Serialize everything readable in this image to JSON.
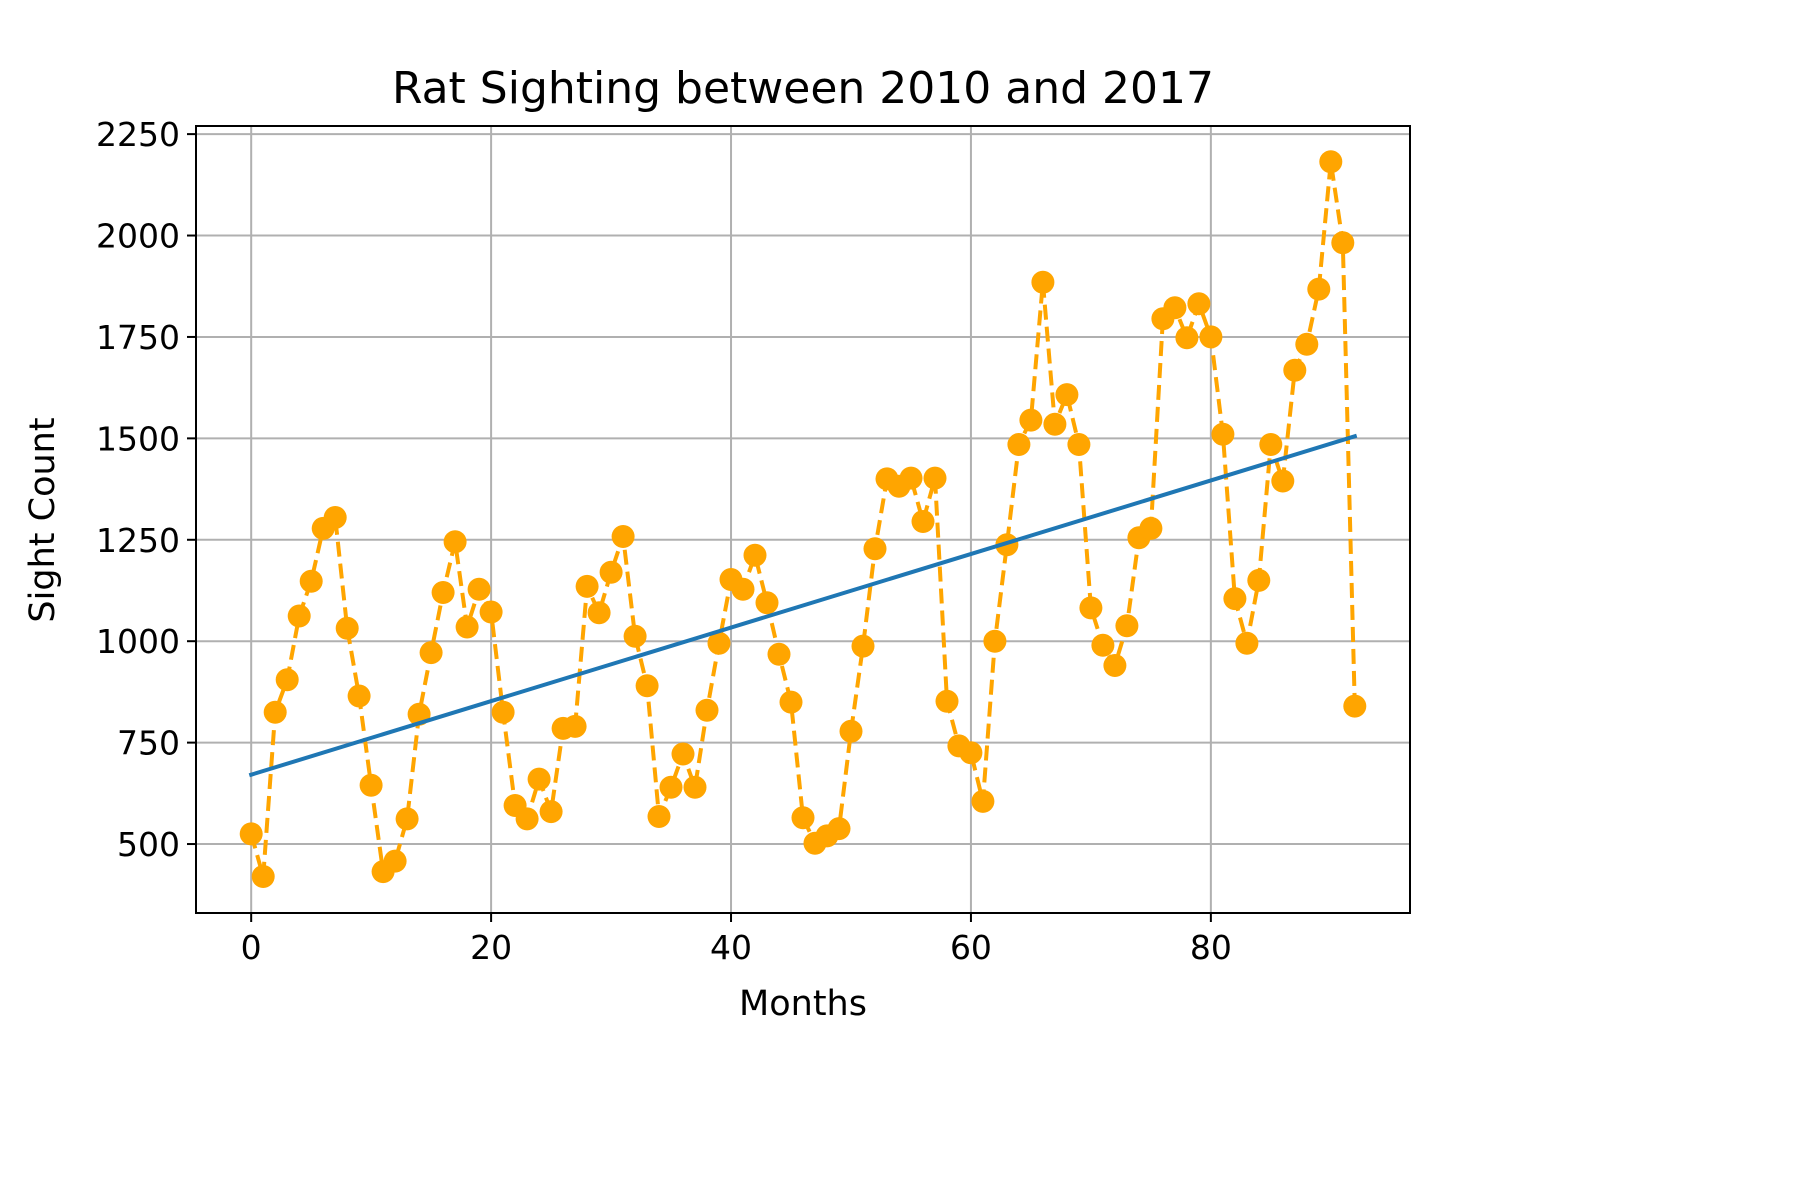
{
  "chart_data": {
    "type": "line",
    "title": "Rat Sighting between 2010 and 2017",
    "xlabel": "Months",
    "ylabel": "Sight Count",
    "xlim": [
      -4.6,
      96.6
    ],
    "ylim": [
      330,
      2270
    ],
    "x_ticks": [
      0,
      20,
      40,
      60,
      80
    ],
    "y_ticks": [
      500,
      750,
      1000,
      1250,
      1500,
      1750,
      2000,
      2250
    ],
    "grid": true,
    "legend": "none",
    "series": [
      {
        "style": "dashed line with circle markers",
        "color": "#ffa500",
        "x": [
          0,
          1,
          2,
          3,
          4,
          5,
          6,
          7,
          8,
          9,
          10,
          11,
          12,
          13,
          14,
          15,
          16,
          17,
          18,
          19,
          20,
          21,
          22,
          23,
          24,
          25,
          26,
          27,
          28,
          29,
          30,
          31,
          32,
          33,
          34,
          35,
          36,
          37,
          38,
          39,
          40,
          41,
          42,
          43,
          44,
          45,
          46,
          47,
          48,
          49,
          50,
          51,
          52,
          53,
          54,
          55,
          56,
          57,
          58,
          59,
          60,
          61,
          62,
          63,
          64,
          65,
          66,
          67,
          68,
          69,
          70,
          71,
          72,
          73,
          74,
          75,
          76,
          77,
          78,
          79,
          80,
          81,
          82,
          83,
          84,
          85,
          86,
          87,
          88,
          89,
          90,
          91,
          92
        ],
        "y": [
          525,
          420,
          825,
          905,
          1062,
          1148,
          1278,
          1305,
          1032,
          865,
          645,
          432,
          458,
          562,
          820,
          972,
          1120,
          1245,
          1035,
          1128,
          1072,
          825,
          595,
          562,
          660,
          580,
          785,
          790,
          1135,
          1070,
          1170,
          1258,
          1012,
          890,
          568,
          640,
          722,
          640,
          830,
          995,
          1152,
          1128,
          1212,
          1095,
          968,
          850,
          565,
          502,
          520,
          538,
          778,
          988,
          1228,
          1400,
          1382,
          1402,
          1295,
          1402,
          852,
          742,
          725,
          605,
          1000,
          1238,
          1485,
          1545,
          1885,
          1535,
          1608,
          1485,
          1082,
          990,
          940,
          1038,
          1255,
          1278,
          1795,
          1822,
          1748,
          1832,
          1750,
          1510,
          1105,
          995,
          1150,
          1485,
          1395,
          1668,
          1732,
          1868,
          2182,
          1982,
          840
        ]
      },
      {
        "style": "solid trend line",
        "color": "#1f77b4",
        "x": [
          0,
          92
        ],
        "y": [
          671,
          1505
        ]
      }
    ]
  }
}
